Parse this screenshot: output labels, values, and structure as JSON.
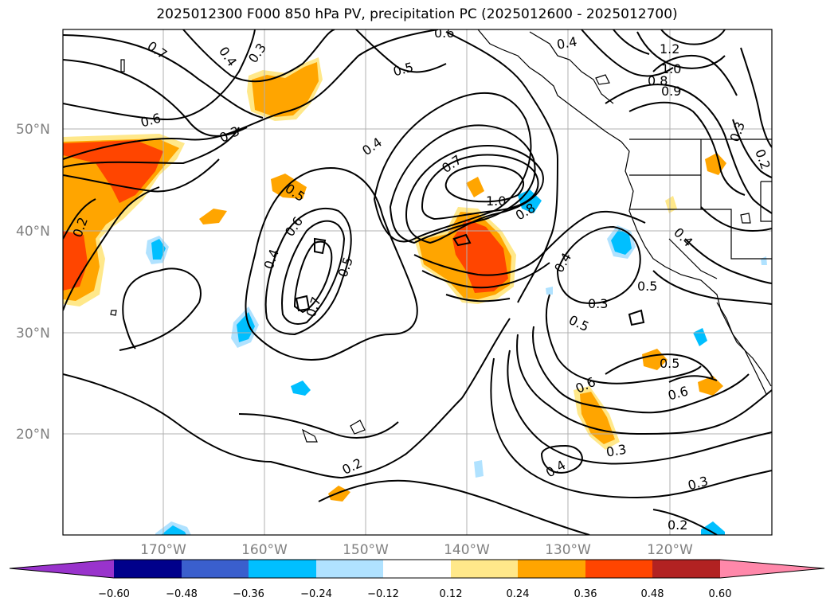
{
  "title": "2025012300 F000 850 hPa PV, precipitation PC (2025012600 - 2025012700)",
  "lat_ticks": [
    "50°N",
    "40°N",
    "30°N",
    "20°N"
  ],
  "lon_ticks": [
    "170°W",
    "160°W",
    "150°W",
    "140°W",
    "130°W",
    "120°W"
  ],
  "colorbar": {
    "ticks": [
      "−0.60",
      "−0.48",
      "−0.36",
      "−0.24",
      "−0.12",
      "0.12",
      "0.24",
      "0.36",
      "0.48",
      "0.60"
    ],
    "colors": [
      "#9933cc",
      "#00008b",
      "#3a5fcd",
      "#00bfff",
      "#b0e2ff",
      "#ffffff",
      "#ffe88a",
      "#ffa500",
      "#ff4500",
      "#b22222",
      "#ff88aa"
    ]
  },
  "contour_labels": [
    "0.7",
    "0.4",
    "0.3",
    "0.6",
    "0.4",
    "1.2",
    "1.0",
    "0.8",
    "0.9",
    "0.5",
    "0.6",
    "0.3",
    "0.3",
    "0.2",
    "0.4",
    "0.7",
    "0.5",
    "1.0",
    "0.8",
    "0.2",
    "0.6",
    "0.4",
    "0.5",
    "0.7",
    "0.4",
    "0.3",
    "0.4",
    "0.5",
    "0.5",
    "0.6",
    "0.5",
    "0.6",
    "0.3",
    "0.4",
    "0.2",
    "0.3",
    "0.2"
  ],
  "colors": {
    "frame": "#000000",
    "grid": "#b0b0b0",
    "tick_label": "#808080"
  }
}
